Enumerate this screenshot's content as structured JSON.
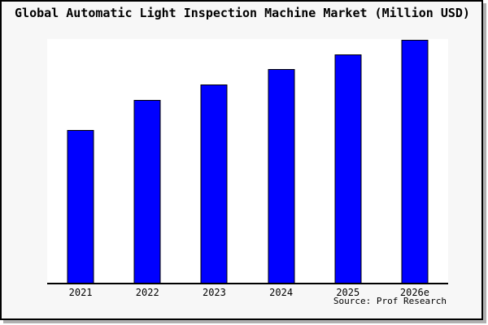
{
  "title": "Global Automatic Light Inspection Machine Market (Million USD)",
  "source": "Source: Prof Research",
  "colors": {
    "background": "#f7f7f7",
    "plot_background": "#ffffff",
    "bar_fill": "#0000ff",
    "bar_border": "#000000",
    "axis": "#000000",
    "frame_border": "#000000",
    "frame_shadow": "#b0b0b0",
    "text": "#000000"
  },
  "chart_data": {
    "type": "bar",
    "title": "Global Automatic Light Inspection Machine Market (Million USD)",
    "categories": [
      "2021",
      "2022",
      "2023",
      "2024",
      "2025",
      "2026e"
    ],
    "values": [
      62.9,
      75.3,
      81.6,
      88.0,
      94.0,
      100.0
    ],
    "xlabel": "",
    "ylabel": "",
    "ylim": [
      0,
      100
    ],
    "grid": false,
    "legend": false,
    "y_axis_visible": false,
    "value_scale_note": "No y-axis labels shown in source image; values are relative estimates normalized so 2026e = 100."
  }
}
